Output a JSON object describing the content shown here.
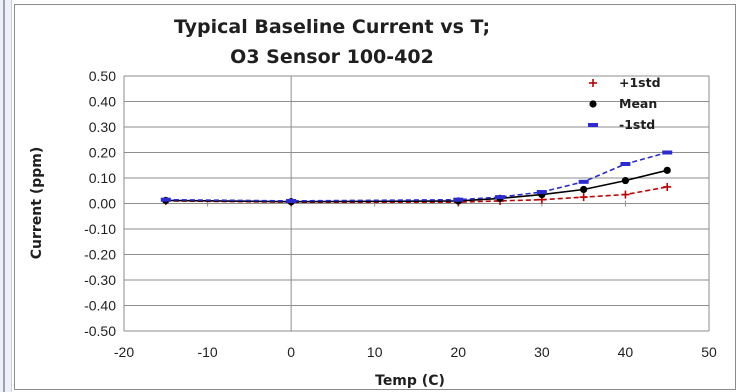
{
  "chart_data": {
    "type": "line",
    "title": "Typical Baseline Current vs T;",
    "subtitle": "O3 Sensor 100-402",
    "xlabel": "Temp (C)",
    "ylabel": "Current (ppm)",
    "xlim": [
      -20,
      50
    ],
    "ylim": [
      -0.5,
      0.5
    ],
    "xticks": [
      "-20",
      "-10",
      "0",
      "10",
      "20",
      "30",
      "40",
      "50"
    ],
    "yticks": [
      "0.50",
      "0.40",
      "0.30",
      "0.20",
      "0.10",
      "0.00",
      "-0.10",
      "-0.20",
      "-0.30",
      "-0.40",
      "-0.50"
    ],
    "grid": "horizontal",
    "legend_position": "top-right",
    "series": [
      {
        "name": "+1std",
        "color": "#c00000",
        "marker": "plus",
        "line": "dashed",
        "points": [
          [
            -15,
            0.01
          ],
          [
            0,
            0.005
          ],
          [
            20,
            0.005
          ],
          [
            25,
            0.01
          ],
          [
            30,
            0.015
          ],
          [
            35,
            0.025
          ],
          [
            40,
            0.035
          ],
          [
            45,
            0.065
          ]
        ]
      },
      {
        "name": "Mean",
        "color": "#000000",
        "marker": "circle",
        "line": "solid",
        "points": [
          [
            -15,
            0.012
          ],
          [
            0,
            0.007
          ],
          [
            20,
            0.01
          ],
          [
            25,
            0.02
          ],
          [
            30,
            0.035
          ],
          [
            35,
            0.055
          ],
          [
            40,
            0.09
          ],
          [
            45,
            0.13
          ]
        ]
      },
      {
        "name": "-1std",
        "color": "#2b2bd1",
        "marker": "dash",
        "line": "dashed",
        "points": [
          [
            -15,
            0.015
          ],
          [
            0,
            0.01
          ],
          [
            20,
            0.015
          ],
          [
            25,
            0.025
          ],
          [
            30,
            0.045
          ],
          [
            35,
            0.085
          ],
          [
            40,
            0.155
          ],
          [
            45,
            0.2
          ]
        ]
      }
    ]
  }
}
